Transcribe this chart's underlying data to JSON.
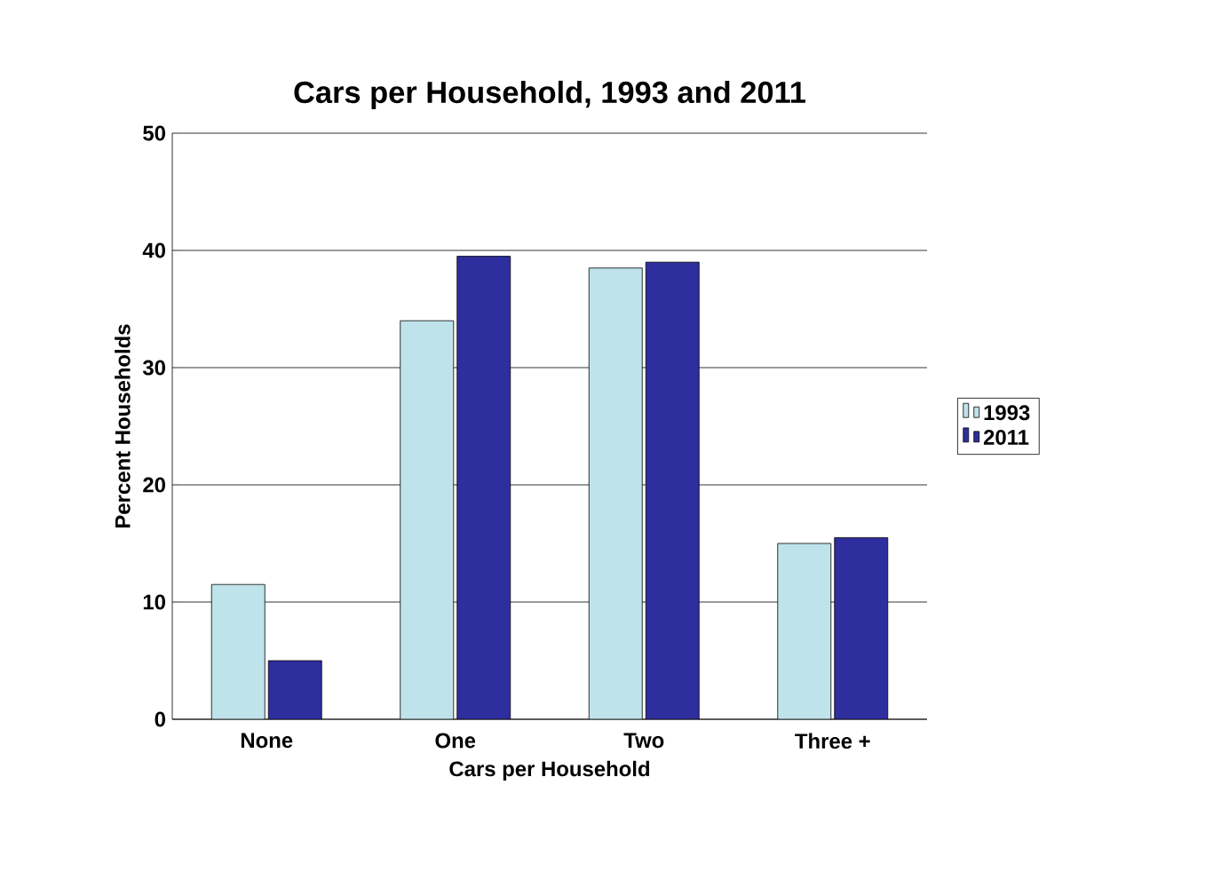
{
  "chart_data": {
    "type": "bar",
    "title": "Cars per Household, 1993 and 2011",
    "xlabel": "Cars per Household",
    "ylabel": "Percent Households",
    "categories": [
      "None",
      "One",
      "Two",
      "Three +"
    ],
    "series": [
      {
        "name": "1993",
        "color": "#bfe3ea",
        "values": [
          11.5,
          34,
          38.5,
          15
        ]
      },
      {
        "name": "2011",
        "color": "#2e2e9e",
        "values": [
          5,
          39.5,
          39,
          15.5
        ]
      }
    ],
    "ylim": [
      0,
      50
    ],
    "yticks": [
      0,
      10,
      20,
      30,
      40,
      50
    ],
    "grid": "y",
    "legend": "right"
  }
}
